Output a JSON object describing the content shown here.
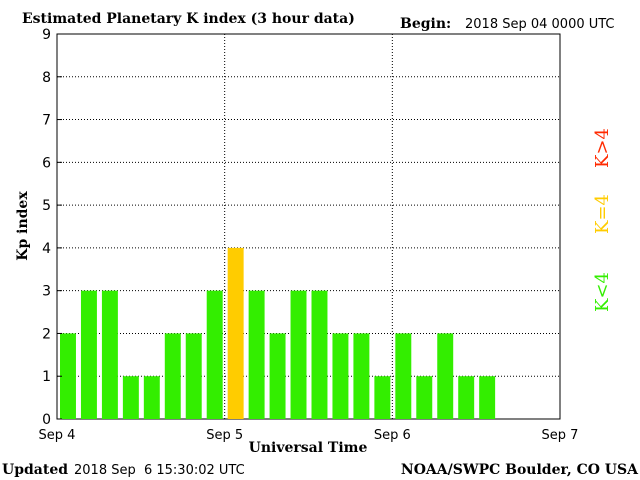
{
  "title": "Estimated Planetary K index (3 hour data)",
  "begin_label": "Begin:",
  "begin_value": "2018 Sep 04 0000 UTC",
  "updated_label": "Updated",
  "updated_value": "2018 Sep  6 15:30:02 UTC",
  "credit": "NOAA/SWPC Boulder, CO USA",
  "legend": {
    "high": {
      "text": "K>4",
      "color": "#ff2a00"
    },
    "equal": {
      "text": "K=4",
      "color": "#ffcc00"
    },
    "low": {
      "text": "K<4",
      "color": "#33ee00"
    }
  },
  "chart_data": {
    "type": "bar",
    "title": "Estimated Planetary K index (3 hour data)",
    "xlabel": "Universal Time",
    "ylabel": "Kp index",
    "ylim": [
      0,
      9
    ],
    "yticks": [
      "0",
      "1",
      "2",
      "3",
      "4",
      "5",
      "6",
      "7",
      "8",
      "9"
    ],
    "xticks": [
      "Sep 4",
      "Sep 5",
      "Sep 6",
      "Sep 7"
    ],
    "bar_interval_hours": 3,
    "values": [
      2,
      3,
      3,
      1,
      1,
      2,
      2,
      3,
      4,
      3,
      2,
      3,
      3,
      2,
      2,
      1,
      2,
      1,
      2,
      1,
      1
    ],
    "grid": true,
    "colors": {
      "below4": "#33ee00",
      "equal4": "#ffcc00",
      "above4": "#ff2a00"
    }
  }
}
